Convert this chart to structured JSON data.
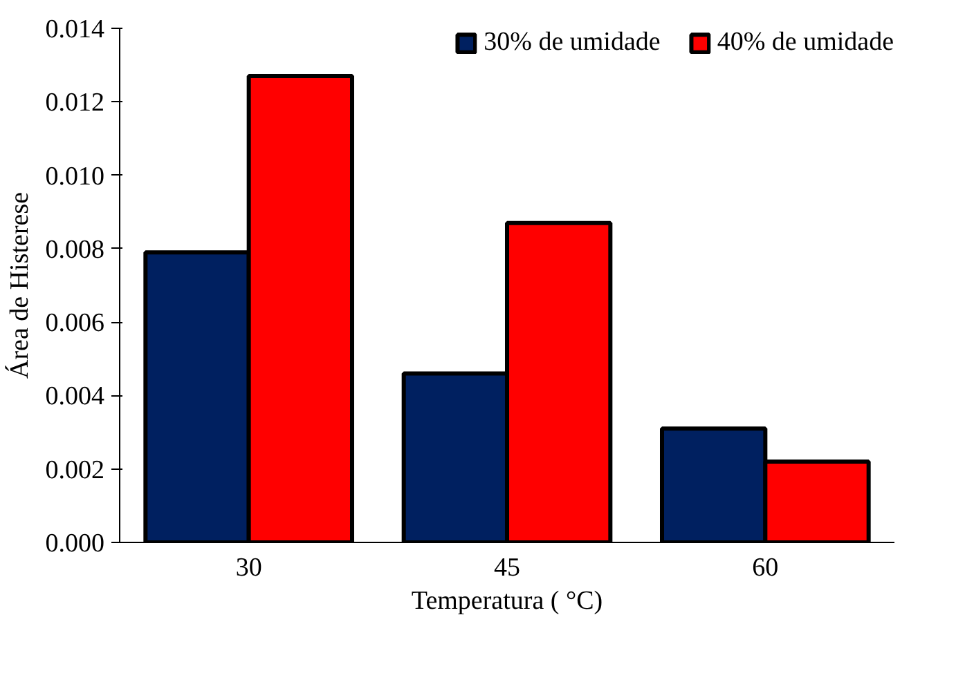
{
  "chart_data": {
    "type": "bar",
    "xlabel": "Temperatura ( °C)",
    "ylabel": "Área de Histerese",
    "categories": [
      "30",
      "45",
      "60"
    ],
    "series": [
      {
        "name": "30% de umidade",
        "color": "#002060",
        "values": [
          0.0079,
          0.0046,
          0.0031
        ]
      },
      {
        "name": "40% de umidade",
        "color": "#ff0000",
        "values": [
          0.0127,
          0.0087,
          0.0022
        ]
      }
    ],
    "ylim": [
      0,
      0.014
    ],
    "yticks": [
      {
        "value": 0,
        "label": "0.000"
      },
      {
        "value": 0.002,
        "label": "0.002"
      },
      {
        "value": 0.004,
        "label": "0.004"
      },
      {
        "value": 0.006,
        "label": "0.006"
      },
      {
        "value": 0.008,
        "label": "0.008"
      },
      {
        "value": 0.01,
        "label": "0.010"
      },
      {
        "value": 0.012,
        "label": "0.012"
      },
      {
        "value": 0.014,
        "label": "0.014"
      }
    ],
    "grid": false,
    "legend": "top right"
  }
}
